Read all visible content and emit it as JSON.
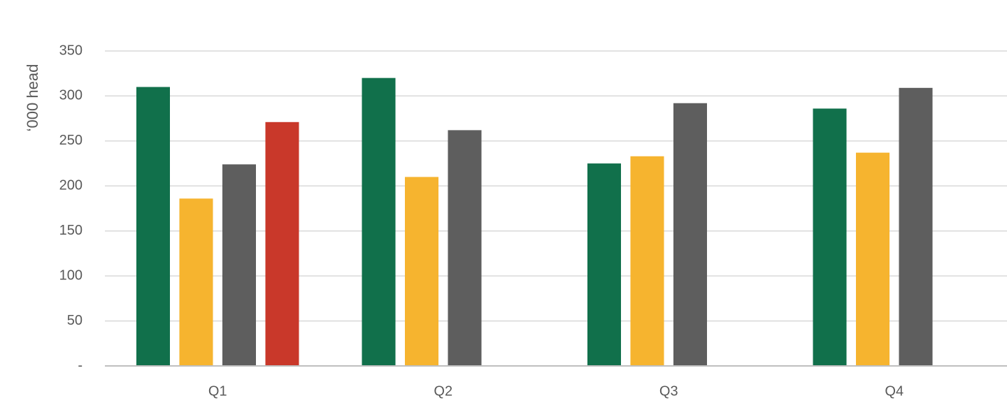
{
  "chart_data": {
    "type": "bar",
    "y_label": "‘000 head",
    "categories": [
      "Q1",
      "Q2",
      "Q3",
      "Q4"
    ],
    "series": [
      {
        "color": "#11704b",
        "values": [
          310,
          320,
          225,
          286
        ]
      },
      {
        "color": "#f6b42f",
        "values": [
          186,
          210,
          233,
          237
        ]
      },
      {
        "color": "#5e5e5e",
        "values": [
          224,
          262,
          292,
          309
        ]
      },
      {
        "color": "#c9382a",
        "values": [
          271,
          null,
          null,
          null
        ]
      }
    ],
    "ylim": [
      0,
      350
    ],
    "yticks": [
      {
        "value": 0,
        "label": "-"
      },
      50,
      100,
      150,
      200,
      250,
      300,
      350
    ],
    "grid": true
  }
}
